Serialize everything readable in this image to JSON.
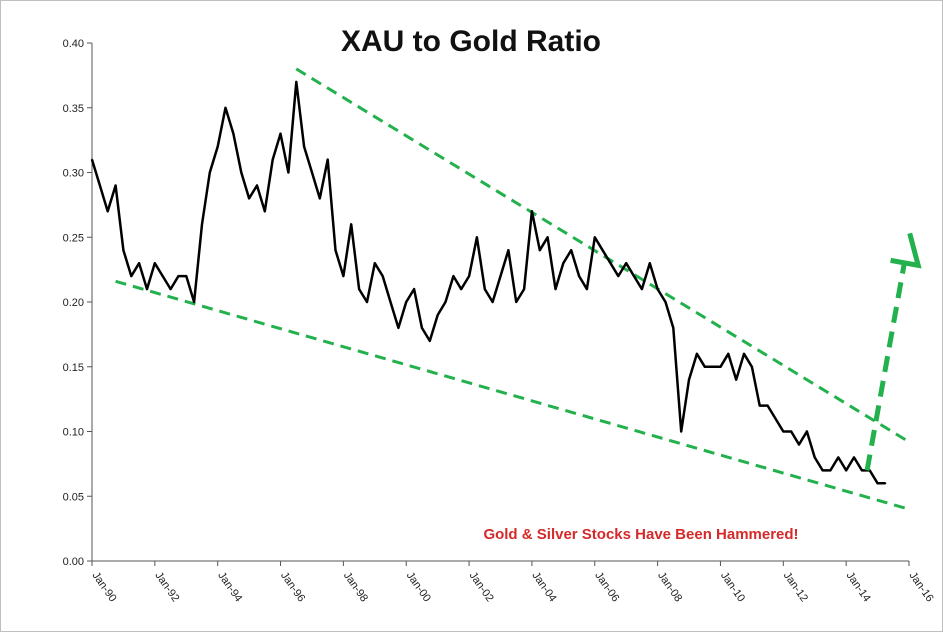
{
  "chart_data": {
    "type": "line",
    "title": "XAU to Gold Ratio",
    "xlabel": "",
    "ylabel": "",
    "ylim": [
      0,
      0.4
    ],
    "xlim": [
      "1990-01",
      "2016-01"
    ],
    "y_ticks": [
      "0.00",
      "0.05",
      "0.10",
      "0.15",
      "0.20",
      "0.25",
      "0.30",
      "0.35",
      "0.40"
    ],
    "y_tick_values": [
      0,
      0.05,
      0.1,
      0.15,
      0.2,
      0.25,
      0.3,
      0.35,
      0.4
    ],
    "x_ticks": [
      "Jan-90",
      "Jan-92",
      "Jan-94",
      "Jan-96",
      "Jan-98",
      "Jan-00",
      "Jan-02",
      "Jan-04",
      "Jan-06",
      "Jan-08",
      "Jan-10",
      "Jan-12",
      "Jan-14",
      "Jan-16"
    ],
    "x_tick_values": [
      "1990-01",
      "1992-01",
      "1994-01",
      "1996-01",
      "1998-01",
      "2000-01",
      "2002-01",
      "2004-01",
      "2006-01",
      "2008-01",
      "2010-01",
      "2012-01",
      "2014-01",
      "2016-01"
    ],
    "grid": false,
    "series": [
      {
        "color": "#000000",
        "x": [
          "1990-01",
          "1990-04",
          "1990-07",
          "1990-10",
          "1991-01",
          "1991-04",
          "1991-07",
          "1991-10",
          "1992-01",
          "1992-04",
          "1992-07",
          "1992-10",
          "1993-01",
          "1993-04",
          "1993-07",
          "1993-10",
          "1994-01",
          "1994-04",
          "1994-07",
          "1994-10",
          "1995-01",
          "1995-04",
          "1995-07",
          "1995-10",
          "1996-01",
          "1996-04",
          "1996-07",
          "1996-10",
          "1997-01",
          "1997-04",
          "1997-07",
          "1997-10",
          "1998-01",
          "1998-04",
          "1998-07",
          "1998-10",
          "1999-01",
          "1999-04",
          "1999-07",
          "1999-10",
          "2000-01",
          "2000-04",
          "2000-07",
          "2000-10",
          "2001-01",
          "2001-04",
          "2001-07",
          "2001-10",
          "2002-01",
          "2002-04",
          "2002-07",
          "2002-10",
          "2003-01",
          "2003-04",
          "2003-07",
          "2003-10",
          "2004-01",
          "2004-04",
          "2004-07",
          "2004-10",
          "2005-01",
          "2005-04",
          "2005-07",
          "2005-10",
          "2006-01",
          "2006-04",
          "2006-07",
          "2006-10",
          "2007-01",
          "2007-04",
          "2007-07",
          "2007-10",
          "2008-01",
          "2008-04",
          "2008-07",
          "2008-10",
          "2009-01",
          "2009-04",
          "2009-07",
          "2009-10",
          "2010-01",
          "2010-04",
          "2010-07",
          "2010-10",
          "2011-01",
          "2011-04",
          "2011-07",
          "2011-10",
          "2012-01",
          "2012-04",
          "2012-07",
          "2012-10",
          "2013-01",
          "2013-04",
          "2013-07",
          "2013-10",
          "2014-01",
          "2014-04",
          "2014-07",
          "2014-10",
          "2015-01",
          "2015-04"
        ],
        "values": [
          0.31,
          0.29,
          0.27,
          0.29,
          0.24,
          0.22,
          0.23,
          0.21,
          0.23,
          0.22,
          0.21,
          0.22,
          0.22,
          0.2,
          0.26,
          0.3,
          0.32,
          0.35,
          0.33,
          0.3,
          0.28,
          0.29,
          0.27,
          0.31,
          0.33,
          0.3,
          0.37,
          0.32,
          0.3,
          0.28,
          0.31,
          0.24,
          0.22,
          0.26,
          0.21,
          0.2,
          0.23,
          0.22,
          0.2,
          0.18,
          0.2,
          0.21,
          0.18,
          0.17,
          0.19,
          0.2,
          0.22,
          0.21,
          0.22,
          0.25,
          0.21,
          0.2,
          0.22,
          0.24,
          0.2,
          0.21,
          0.27,
          0.24,
          0.25,
          0.21,
          0.23,
          0.24,
          0.22,
          0.21,
          0.25,
          0.24,
          0.23,
          0.22,
          0.23,
          0.22,
          0.21,
          0.23,
          0.21,
          0.2,
          0.18,
          0.1,
          0.14,
          0.16,
          0.15,
          0.15,
          0.15,
          0.16,
          0.14,
          0.16,
          0.15,
          0.12,
          0.12,
          0.11,
          0.1,
          0.1,
          0.09,
          0.1,
          0.08,
          0.07,
          0.07,
          0.08,
          0.07,
          0.08,
          0.07,
          0.07,
          0.06,
          0.06
        ]
      }
    ],
    "trendlines": [
      {
        "color": "#22b14c",
        "x": [
          "1990-10",
          "2016-01"
        ],
        "values": [
          0.216,
          0.04
        ]
      },
      {
        "color": "#22b14c",
        "x": [
          "1996-07",
          "2016-01"
        ],
        "values": [
          0.38,
          0.092
        ]
      }
    ],
    "arrow": {
      "color": "#22b14c",
      "x": [
        "2014-09",
        "2016-01"
      ],
      "values": [
        0.07,
        0.25
      ]
    },
    "annotation": {
      "text": "Gold & Silver Stocks Have Been Hammered!",
      "color": "#d42a2a"
    }
  }
}
